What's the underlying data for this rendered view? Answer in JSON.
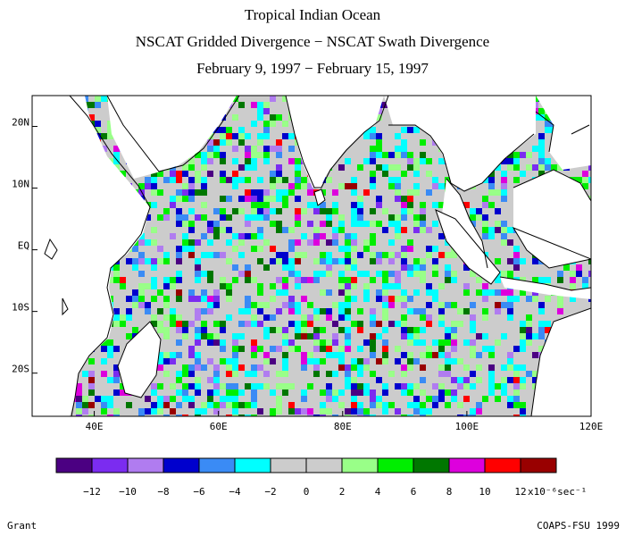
{
  "titles": {
    "line1": "Tropical Indian Ocean",
    "line2": "NSCAT Gridded Divergence − NSCAT Swath Divergence",
    "line3": "February 9, 1997 − February 15, 1997"
  },
  "axes": {
    "lon_labels": [
      "40E",
      "60E",
      "80E",
      "100E",
      "120E"
    ],
    "lat_labels": [
      "20N",
      "10N",
      "EQ",
      "10S",
      "20S"
    ],
    "lon_range": [
      30,
      120
    ],
    "lat_range": [
      -27,
      25
    ]
  },
  "colorbar": {
    "colors": [
      "#4b0082",
      "#7b2cf0",
      "#b07cf0",
      "#0000cd",
      "#3a8bf5",
      "#00ffff",
      "#cccccc",
      "#cccccc",
      "#99ff88",
      "#00ee00",
      "#007700",
      "#dd00dd",
      "#ff0000",
      "#990000"
    ],
    "tick_labels": [
      "-12",
      "-10",
      "-8",
      "-6",
      "-4",
      "-2",
      "0",
      "2",
      "4",
      "6",
      "8",
      "10",
      "12"
    ],
    "units": "x10⁻⁶sec⁻¹"
  },
  "credits": {
    "left": "Grant",
    "right": "COAPS-FSU 1999"
  }
}
